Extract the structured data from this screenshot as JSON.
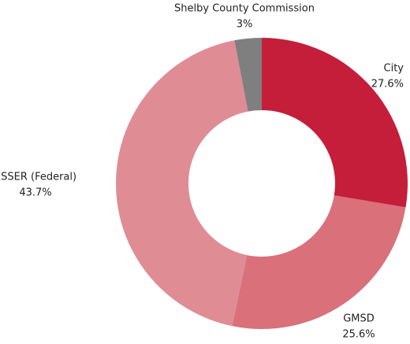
{
  "chart_data": {
    "type": "pie",
    "donut": true,
    "categories": [
      "City",
      "GMSD",
      "ESSER (Federal)",
      "Shelby County Commission"
    ],
    "values": [
      27.6,
      25.6,
      43.7,
      3
    ],
    "value_labels": [
      "27.6%",
      "25.6%",
      "43.7%",
      "3%"
    ],
    "colors": [
      "#c41e3a",
      "#d9707a",
      "#e08c95",
      "#7f7f80"
    ]
  }
}
